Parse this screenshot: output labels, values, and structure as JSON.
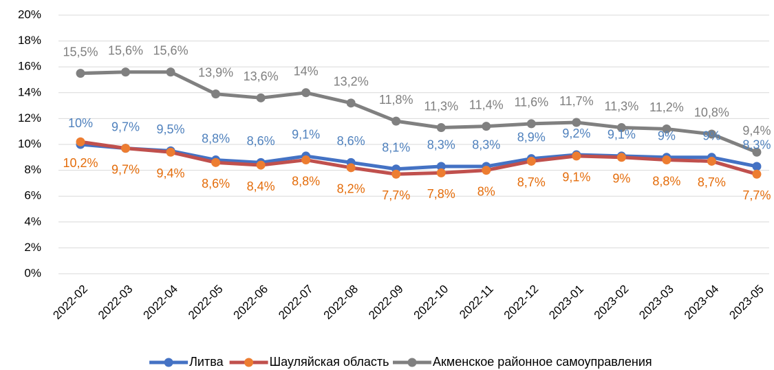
{
  "chart_data": {
    "type": "line",
    "categories": [
      "2022-02",
      "2022-03",
      "2022-04",
      "2022-05",
      "2022-06",
      "2022-07",
      "2022-08",
      "2022-09",
      "2022-10",
      "2022-11",
      "2022-12",
      "2023-01",
      "2023-02",
      "2023-03",
      "2023-04",
      "2023-05"
    ],
    "series": [
      {
        "name": "Литва",
        "color": "#4472c4",
        "marker_color": "#4472c4",
        "label_color": "#4f81bd",
        "values": [
          10,
          9.7,
          9.5,
          8.8,
          8.6,
          9.1,
          8.6,
          8.1,
          8.3,
          8.3,
          8.9,
          9.2,
          9.1,
          9,
          9,
          8.3
        ],
        "value_labels": [
          "10%",
          "9,7%",
          "9,5%",
          "8,8%",
          "8,6%",
          "9,1%",
          "8,6%",
          "8,1%",
          "8,3%",
          "8,3%",
          "8,9%",
          "9,2%",
          "9,1%",
          "9%",
          "9%",
          "8,3%"
        ]
      },
      {
        "name": "Шауляйская область",
        "color": "#c0504d",
        "marker_color": "#ed7d31",
        "label_color": "#e46c0a",
        "values": [
          10.2,
          9.7,
          9.4,
          8.6,
          8.4,
          8.8,
          8.2,
          7.7,
          7.8,
          8,
          8.7,
          9.1,
          9,
          8.8,
          8.7,
          7.7
        ],
        "value_labels": [
          "10,2%",
          "9,7%",
          "9,4%",
          "8,6%",
          "8,4%",
          "8,8%",
          "8,2%",
          "7,7%",
          "7,8%",
          "8%",
          "8,7%",
          "9,1%",
          "9%",
          "8,8%",
          "8,7%",
          "7,7%"
        ]
      },
      {
        "name": "Акменское районное самоуправления",
        "color": "#808080",
        "marker_color": "#808080",
        "label_color": "#7f7f7f",
        "values": [
          15.5,
          15.6,
          15.6,
          13.9,
          13.6,
          14,
          13.2,
          11.8,
          11.3,
          11.4,
          11.6,
          11.7,
          11.3,
          11.2,
          10.8,
          9.4
        ],
        "value_labels": [
          "15,5%",
          "15,6%",
          "15,6%",
          "13,9%",
          "13,6%",
          "14%",
          "13,2%",
          "11,8%",
          "11,3%",
          "11,4%",
          "11,6%",
          "11,7%",
          "11,3%",
          "11,2%",
          "10,8%",
          "9,4%"
        ]
      }
    ],
    "ylim": [
      0,
      20
    ],
    "yticks": [
      {
        "value": 0,
        "label": "0%"
      },
      {
        "value": 2,
        "label": "2%"
      },
      {
        "value": 4,
        "label": "4%"
      },
      {
        "value": 6,
        "label": "6%"
      },
      {
        "value": 8,
        "label": "8%"
      },
      {
        "value": 10,
        "label": "10%"
      },
      {
        "value": 12,
        "label": "12%"
      },
      {
        "value": 14,
        "label": "14%"
      },
      {
        "value": 16,
        "label": "16%"
      },
      {
        "value": 18,
        "label": "18%"
      },
      {
        "value": 20,
        "label": "20%"
      }
    ],
    "grid": true,
    "legend": "bottom"
  }
}
